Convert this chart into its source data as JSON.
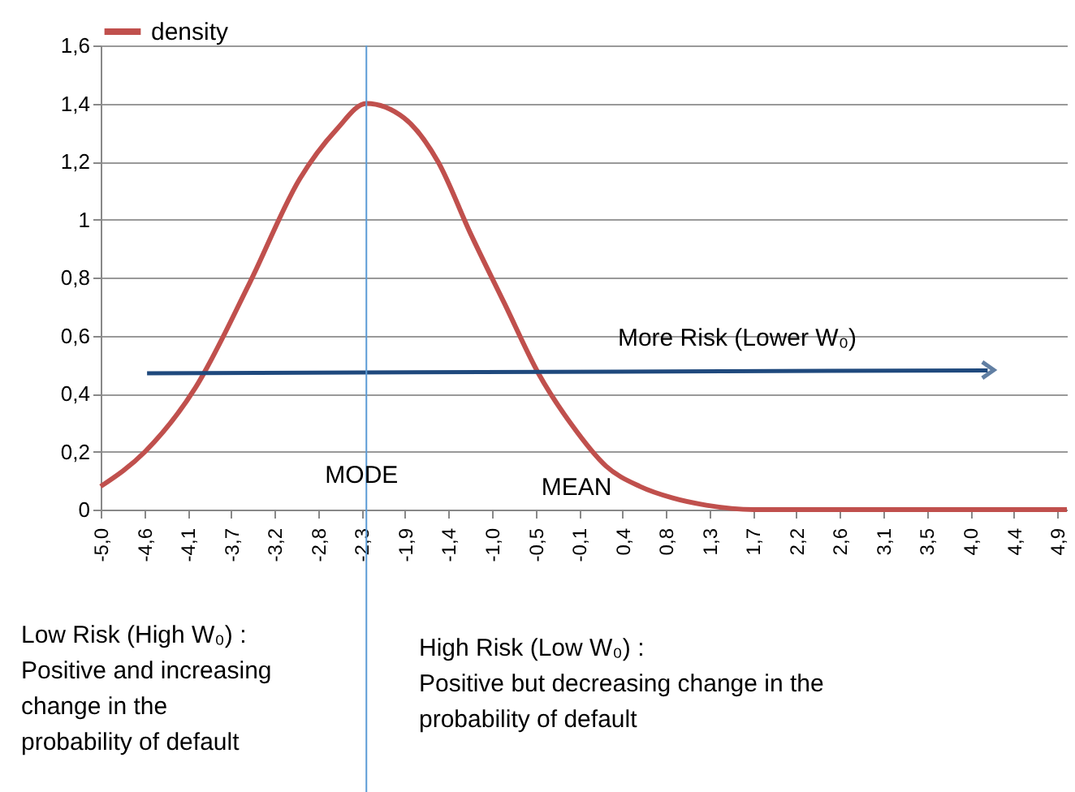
{
  "chart_data": {
    "type": "line",
    "legend": "top",
    "grid": "y",
    "line_style": "solid",
    "x": [
      -5.0,
      -4.54,
      -4.02,
      -3.46,
      -2.94,
      -2.56,
      -2.25,
      -1.86,
      -1.51,
      -1.17,
      -0.82,
      -0.47,
      -0.12,
      0.23,
      0.58,
      0.92,
      1.27,
      1.76,
      2.5,
      3.5,
      4.5,
      5.0
    ],
    "series": [
      {
        "name": "density",
        "color": "#c0504d",
        "values": [
          0.08,
          0.2,
          0.42,
          0.78,
          1.14,
          1.31,
          1.4,
          1.35,
          1.2,
          0.95,
          0.71,
          0.47,
          0.29,
          0.15,
          0.08,
          0.04,
          0.015,
          0,
          0,
          0,
          0,
          0
        ]
      },
      {
        "type": "line",
        "color": "#1f497d",
        "x": [
          -4.52,
          4.18
        ],
        "values": [
          0.47,
          0.48
        ]
      }
    ],
    "xlim": [
      -5.0,
      5.0
    ],
    "xticks": [
      {
        "value": -5.0,
        "label": "-5,0"
      },
      {
        "value": -4.55,
        "label": "-4,6"
      },
      {
        "value": -4.1,
        "label": "-4,1"
      },
      {
        "value": -3.65,
        "label": "-3,7"
      },
      {
        "value": -3.2,
        "label": "-3,2"
      },
      {
        "value": -2.75,
        "label": "-2,8"
      },
      {
        "value": -2.3,
        "label": "-2,3"
      },
      {
        "value": -1.85,
        "label": "-1,9"
      },
      {
        "value": -1.4,
        "label": "-1,4"
      },
      {
        "value": -0.95,
        "label": "-1,0"
      },
      {
        "value": -0.5,
        "label": "-0,5"
      },
      {
        "value": -0.05,
        "label": "-0,1"
      },
      {
        "value": 0.4,
        "label": "0,4"
      },
      {
        "value": 0.85,
        "label": "0,8"
      },
      {
        "value": 1.3,
        "label": "1,3"
      },
      {
        "value": 1.75,
        "label": "1,7"
      },
      {
        "value": 2.2,
        "label": "2,2"
      },
      {
        "value": 2.65,
        "label": "2,6"
      },
      {
        "value": 3.1,
        "label": "3,1"
      },
      {
        "value": 3.55,
        "label": "3,5"
      },
      {
        "value": 4.0,
        "label": "4,0"
      },
      {
        "value": 4.45,
        "label": "4,4"
      },
      {
        "value": 4.9,
        "label": "4,9"
      }
    ],
    "ylim": [
      0,
      1.6
    ],
    "yticks": [
      0,
      {
        "value": 0.2,
        "label": "0,2"
      },
      {
        "value": 0.4,
        "label": "0,4"
      },
      {
        "value": 0.6,
        "label": "0,6"
      },
      {
        "value": 0.8,
        "label": "0,8"
      },
      1,
      {
        "value": 1.2,
        "label": "1,2"
      },
      {
        "value": 1.4,
        "label": "1,4"
      },
      {
        "value": 1.6,
        "label": "1,6"
      }
    ],
    "ref_lines": [
      {
        "axis": "x",
        "value": -2.25,
        "color": "#5b9bd5",
        "line_style": "solid"
      }
    ],
    "annotations": [
      {
        "text": "MODE",
        "x": -2.3,
        "y": 0.12
      },
      "MEAN",
      "More Risk (Lower W₀)",
      "Low Risk (High W₀) :\nPositive and increasing\nchange in the\nprobability of default",
      "High Risk (Low W₀) :\nPositive but decreasing  change in the\nprobability of default"
    ]
  }
}
